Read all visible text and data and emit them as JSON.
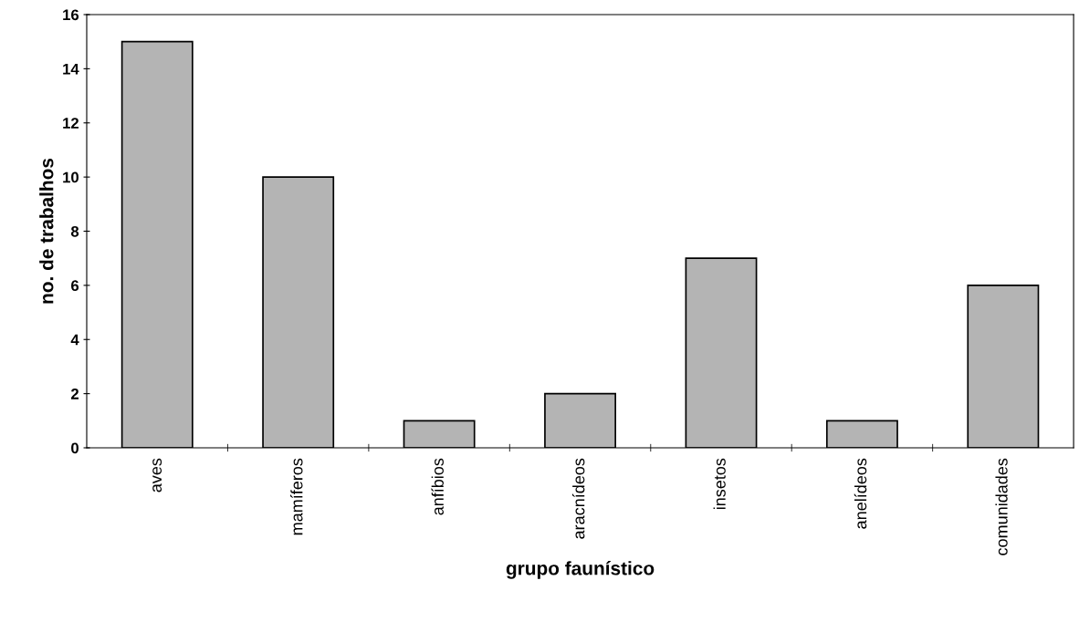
{
  "chart_data": {
    "type": "bar",
    "xlabel": "grupo faunístico",
    "ylabel": "no. de trabalhos",
    "categories": [
      "aves",
      "mamíferos",
      "anfíbios",
      "aracnídeos",
      "insetos",
      "anelídeos",
      "comunidades"
    ],
    "values": [
      15,
      10,
      1,
      2,
      7,
      1,
      6
    ],
    "color": "#b4b4b4",
    "ylim": [
      0,
      16
    ],
    "yticks": [
      0,
      2,
      4,
      6,
      8,
      10,
      12,
      14,
      16
    ],
    "grid": false,
    "legend": false
  }
}
